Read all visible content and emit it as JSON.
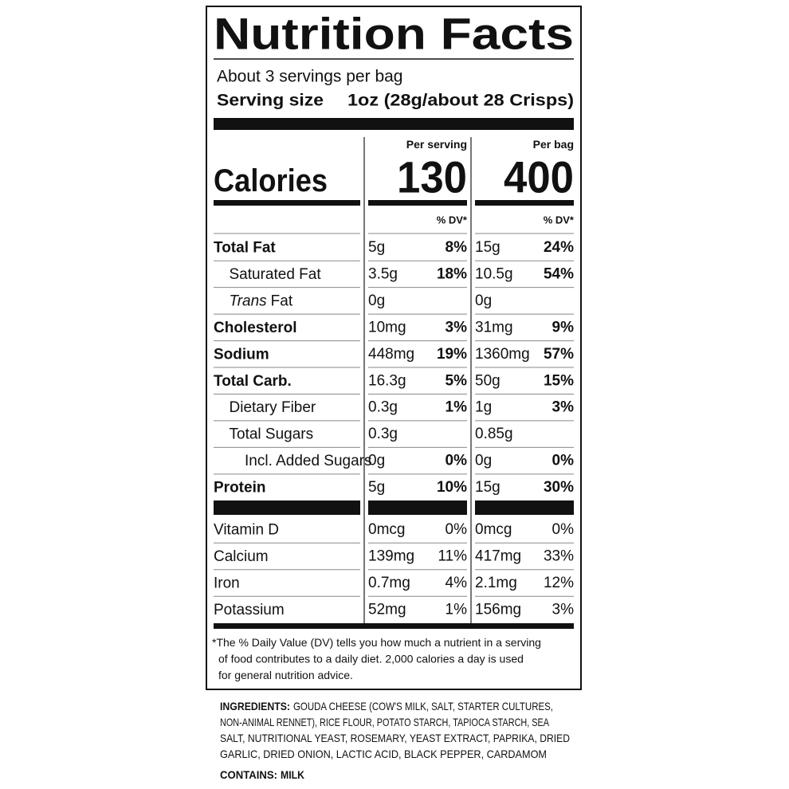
{
  "title": "Nutrition Facts",
  "servings": "About 3 servings per bag",
  "serving_size": {
    "label": "Serving size",
    "value": "1oz (28g/about 28 Crisps)"
  },
  "columns": {
    "per_serving": "Per serving",
    "per_bag": "Per bag",
    "serving_dv": "% DV*",
    "bag_dv": "% DV*"
  },
  "calories": {
    "label": "Calories",
    "per_serving": "130",
    "per_bag": "400"
  },
  "nutrients": [
    {
      "label": "Total Fat",
      "serving_amount": "5g",
      "serving_dv": "8%",
      "bag_amount": "15g",
      "bag_dv": "24%",
      "sub": [
        {
          "label": "Saturated Fat",
          "serving_amount": "3.5g",
          "serving_dv": "18%",
          "bag_amount": "10.5g",
          "bag_dv": "54%"
        },
        {
          "label_italic": "Trans",
          "label": "Fat",
          "serving_amount": "0g",
          "bag_amount": "0g"
        }
      ]
    },
    {
      "label": "Cholesterol",
      "serving_amount": "10mg",
      "serving_dv": "3%",
      "bag_amount": "31mg",
      "bag_dv": "9%"
    },
    {
      "label": "Sodium",
      "serving_amount": "448mg",
      "serving_dv": "19%",
      "bag_amount": "1360mg",
      "bag_dv": "57%"
    },
    {
      "label": "Total Carb.",
      "serving_amount": "16.3g",
      "serving_dv": "5%",
      "bag_amount": "50g",
      "bag_dv": "15%",
      "sub": [
        {
          "label": "Dietary Fiber",
          "serving_amount": "0.3g",
          "serving_dv": "1%",
          "bag_amount": "1g",
          "bag_dv": "3%"
        },
        {
          "label": "Total Sugars",
          "serving_amount": "0.3g",
          "bag_amount": "0.85g",
          "sub": [
            {
              "label": "Incl. Added Sugars",
              "serving_amount": "0g",
              "serving_dv": "0%",
              "bag_amount": "0g",
              "bag_dv": "0%"
            }
          ]
        }
      ]
    },
    {
      "label": "Protein",
      "serving_amount": "5g",
      "serving_dv": "10%",
      "bag_amount": "15g",
      "bag_dv": "30%"
    }
  ],
  "vitamins": [
    {
      "label": "Vitamin D",
      "serving_amount": "0mcg",
      "serving_dv": "0%",
      "bag_amount": "0mcg",
      "bag_dv": "0%"
    },
    {
      "label": "Calcium",
      "serving_amount": "139mg",
      "serving_dv": "11%",
      "bag_amount": "417mg",
      "bag_dv": "33%"
    },
    {
      "label": "Iron",
      "serving_amount": "0.7mg",
      "serving_dv": "4%",
      "bag_amount": "2.1mg",
      "bag_dv": "12%"
    },
    {
      "label": "Potassium",
      "serving_amount": "52mg",
      "serving_dv": "1%",
      "bag_amount": "156mg",
      "bag_dv": "3%"
    }
  ],
  "footnote": [
    "*The % Daily Value (DV) tells you how much a nutrient in a serving",
    "of food contributes to a daily diet. 2,000 calories a day is used",
    "for general nutrition advice."
  ],
  "ingredients": {
    "label": "INGREDIENTS:",
    "lines": [
      "GOUDA CHEESE (COW'S MILK, SALT, STARTER CULTURES,",
      "NON-ANIMAL RENNET), RICE FLOUR, POTATO STARCH, TAPIOCA STARCH, SEA",
      "SALT, NUTRITIONAL YEAST, ROSEMARY, YEAST EXTRACT, PAPRIKA, DRIED",
      "GARLIC, DRIED ONION, LACTIC ACID, BLACK PEPPER, CARDAMOM"
    ]
  },
  "contains": {
    "label": "CONTAINS:",
    "value": "MILK"
  }
}
